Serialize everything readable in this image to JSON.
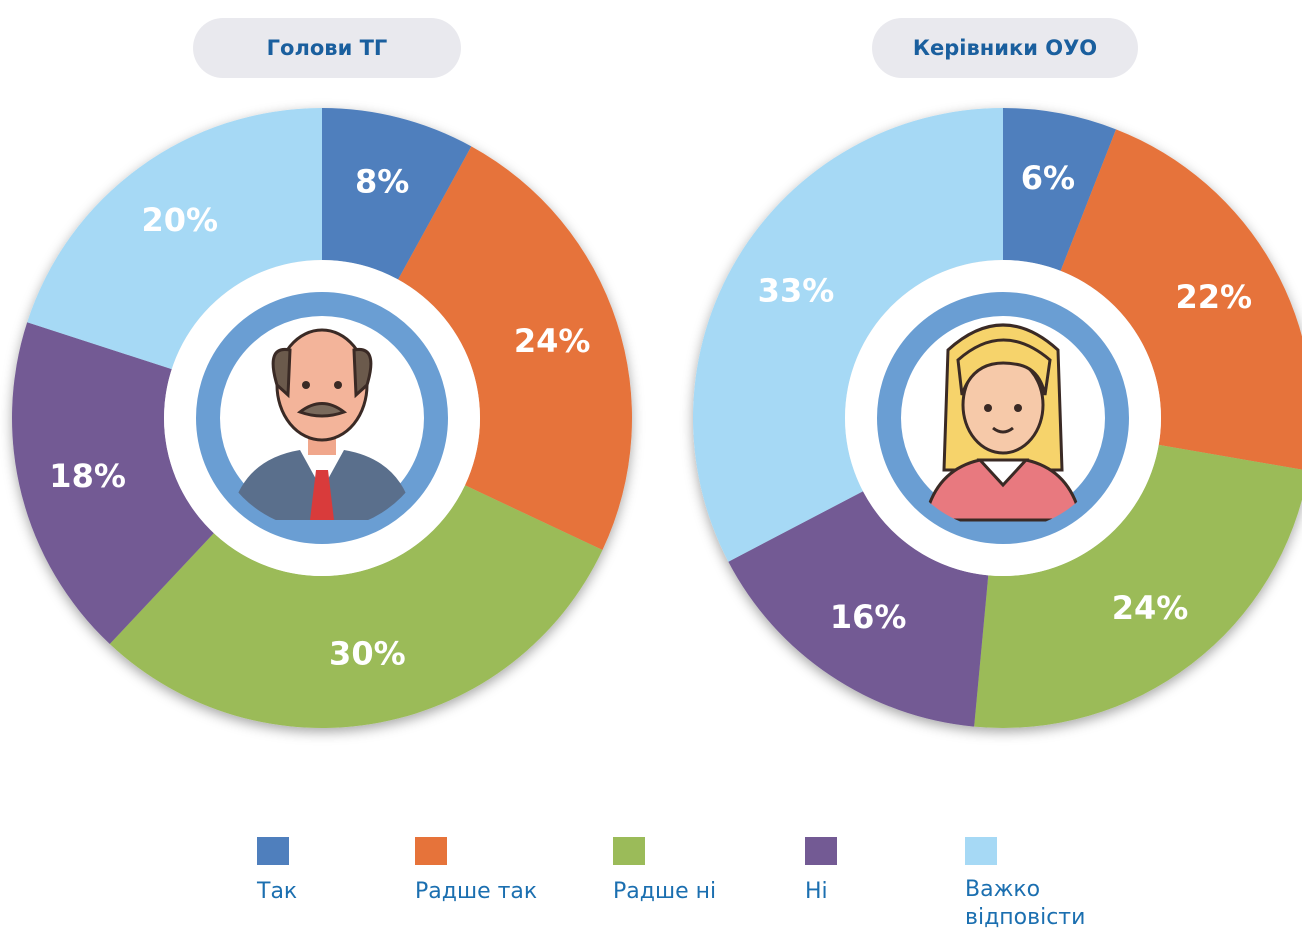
{
  "chart_data": [
    {
      "type": "donut",
      "title": "Голови ТГ",
      "values": [
        8,
        24,
        30,
        18,
        20
      ],
      "value_labels": [
        "8%",
        "24%",
        "30%",
        "18%",
        "20%"
      ]
    },
    {
      "type": "donut",
      "title": "Керівники ОУО",
      "values": [
        6,
        22,
        24,
        16,
        33
      ],
      "value_labels": [
        "6%",
        "22%",
        "24%",
        "16%",
        "33%"
      ]
    }
  ],
  "legend": {
    "categories": [
      "Так",
      "Радше так",
      "Радше ні",
      "Ні",
      "Важко відповісти"
    ],
    "colors": [
      "#4f7fbd",
      "#e6733a",
      "#9bbb59",
      "#735a94",
      "#a6d9f5"
    ]
  }
}
